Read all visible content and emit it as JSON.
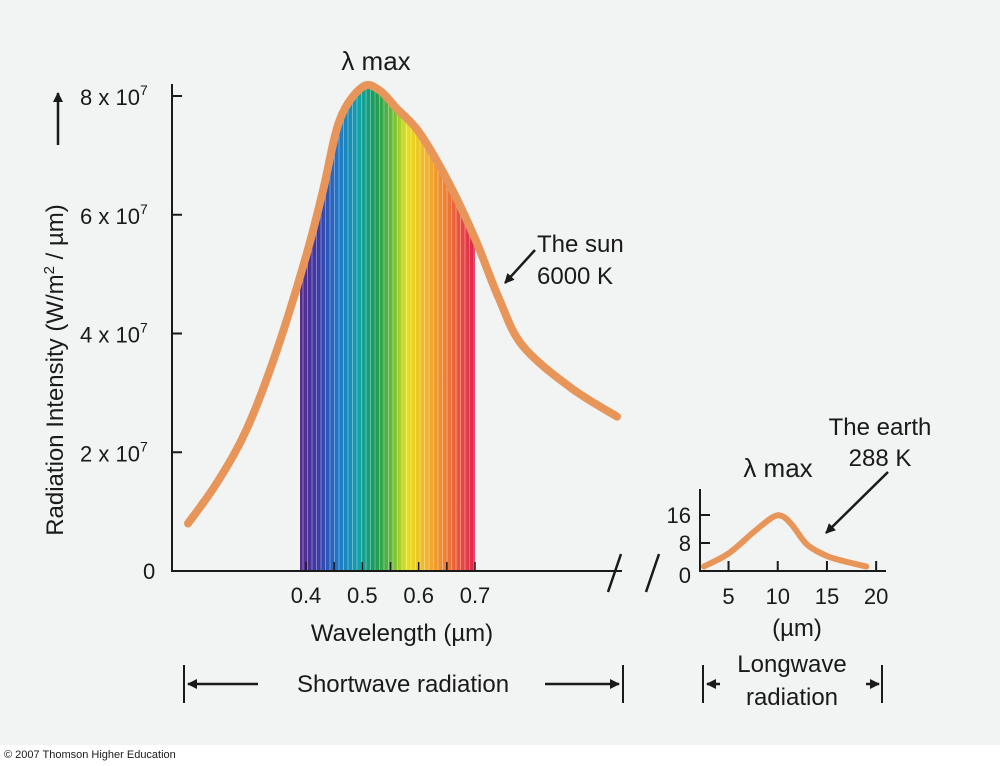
{
  "copyright": "© 2007 Thomson Higher Education",
  "colors": {
    "curve": "#e8955a",
    "axis": "#1a1a1a",
    "background": "#f2f3f3"
  },
  "chart_data": [
    {
      "type": "line",
      "name": "sun",
      "ylabel_prefix": "Radiation Intensity (W/m",
      "ylabel_suffix": " / µm)",
      "ylabel_sup": "2",
      "xlabel": "Wavelength (µm)",
      "y_ticks": [
        {
          "value": 0,
          "base": "0",
          "exp": ""
        },
        {
          "value": 20000000,
          "base": "2 x 10",
          "exp": "7"
        },
        {
          "value": 40000000,
          "base": "4 x 10",
          "exp": "7"
        },
        {
          "value": 60000000,
          "base": "6 x 10",
          "exp": "7"
        },
        {
          "value": 80000000,
          "base": "8 x 10",
          "exp": "7"
        }
      ],
      "x_tick_labels": [
        "0.4",
        "0.5",
        "0.6",
        "0.7"
      ],
      "peak_label": "λ max",
      "series_label_line1": "The sun",
      "series_label_line2": "6000 K",
      "visible_band": [
        0.4,
        0.7
      ],
      "ylim": [
        0,
        80000000
      ],
      "points": [
        {
          "x": 0.2,
          "y": 8000000
        },
        {
          "x": 0.25,
          "y": 15000000
        },
        {
          "x": 0.3,
          "y": 24000000
        },
        {
          "x": 0.35,
          "y": 37000000
        },
        {
          "x": 0.4,
          "y": 53000000
        },
        {
          "x": 0.43,
          "y": 64000000
        },
        {
          "x": 0.46,
          "y": 76000000
        },
        {
          "x": 0.5,
          "y": 81500000
        },
        {
          "x": 0.53,
          "y": 81000000
        },
        {
          "x": 0.56,
          "y": 78000000
        },
        {
          "x": 0.6,
          "y": 74000000
        },
        {
          "x": 0.65,
          "y": 66000000
        },
        {
          "x": 0.7,
          "y": 56000000
        },
        {
          "x": 0.75,
          "y": 46000000
        },
        {
          "x": 0.8,
          "y": 38000000
        },
        {
          "x": 0.9,
          "y": 31000000
        },
        {
          "x": 1.0,
          "y": 26000000
        }
      ]
    },
    {
      "type": "line",
      "name": "earth",
      "xlabel": "(µm)",
      "x_ticks": [
        5,
        10,
        15,
        20
      ],
      "y_ticks": [
        0,
        8,
        16
      ],
      "peak_label": "λ max",
      "series_label_line1": "The earth",
      "series_label_line2": "288 K",
      "xlim": [
        2,
        21
      ],
      "ylim": [
        0,
        16
      ],
      "points": [
        {
          "x": 2.5,
          "y": 1.3
        },
        {
          "x": 5,
          "y": 5
        },
        {
          "x": 7.5,
          "y": 11
        },
        {
          "x": 9.5,
          "y": 15.4
        },
        {
          "x": 10.5,
          "y": 15.6
        },
        {
          "x": 11.5,
          "y": 13
        },
        {
          "x": 13,
          "y": 7.5
        },
        {
          "x": 15,
          "y": 4.3
        },
        {
          "x": 17,
          "y": 2.6
        },
        {
          "x": 19,
          "y": 1.3
        }
      ]
    }
  ],
  "bands": {
    "shortwave": "Shortwave radiation",
    "longwave_line1": "Longwave",
    "longwave_line2": "radiation"
  }
}
